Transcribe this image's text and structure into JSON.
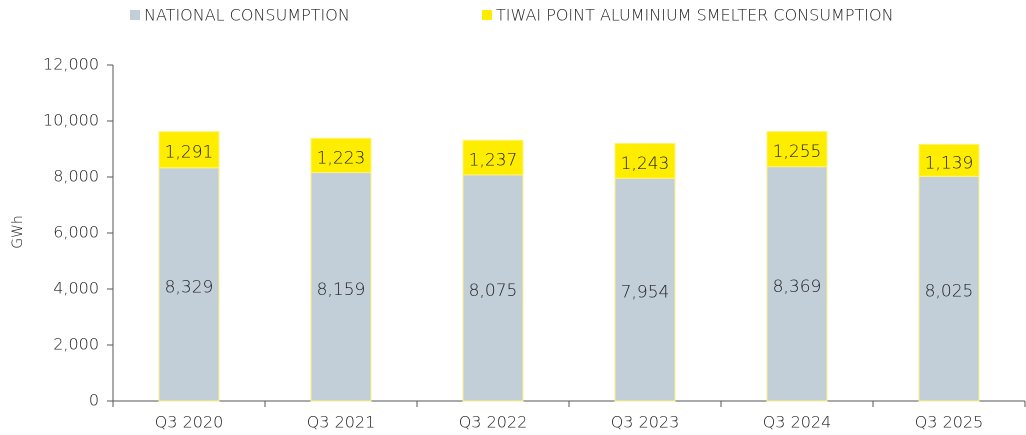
{
  "chart_data": {
    "type": "stacked_bar",
    "y_label": "GWh",
    "categories": [
      "Q3 2020",
      "Q3 2021",
      "Q3 2022",
      "Q3 2023",
      "Q3 2024",
      "Q3 2025"
    ],
    "series": [
      {
        "name": "NATIONAL CONSUMPTION",
        "color": "#c2cfd9",
        "values": [
          8329,
          8159,
          8075,
          7954,
          8369,
          8025
        ],
        "value_labels": [
          "8,329",
          "8,159",
          "8,075",
          "7,954",
          "8,369",
          "8,025"
        ]
      },
      {
        "name": "TIWAI POINT ALUMINIUM SMELTER CONSUMPTION",
        "color": "#ffed00",
        "values": [
          1291,
          1223,
          1237,
          1243,
          1255,
          1139
        ],
        "value_labels": [
          "1,291",
          "1,223",
          "1,237",
          "1,243",
          "1,255",
          "1,139"
        ]
      }
    ],
    "ylim": [
      0,
      12000
    ],
    "yticks": [
      0,
      {
        "value": 2000,
        "label": "2,000"
      },
      {
        "value": 4000,
        "label": "4,000"
      },
      {
        "value": 6000,
        "label": "6,000"
      },
      {
        "value": 8000,
        "label": "8,000"
      },
      {
        "value": 10000,
        "label": "10,000"
      },
      {
        "value": 12000,
        "label": "12,000"
      }
    ],
    "legend": "top"
  }
}
